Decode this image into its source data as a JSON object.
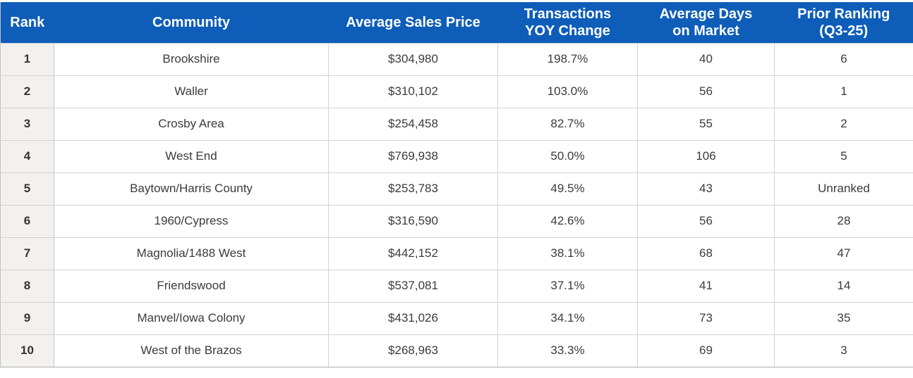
{
  "colors": {
    "header_bg": "#0e5db9",
    "header_text": "#ffffff",
    "rank_column_bg": "#f2f1ef",
    "row_bg": "#ffffff",
    "grid_border": "#d2d2d2",
    "outer_border": "#aeaeae",
    "body_text": "#3b3b3b"
  },
  "chart_data": {
    "type": "table",
    "columns": [
      {
        "key": "rank",
        "label": "Rank",
        "lines": [
          "Rank"
        ]
      },
      {
        "key": "community",
        "label": "Community",
        "lines": [
          "Community"
        ]
      },
      {
        "key": "avg_sales_price",
        "label": "Average Sales Price",
        "lines": [
          "Average Sales Price"
        ]
      },
      {
        "key": "yoy_change",
        "label": "Transactions YOY Change",
        "lines": [
          "Transactions",
          "YOY Change"
        ]
      },
      {
        "key": "avg_days_on_market",
        "label": "Average Days on Market",
        "lines": [
          "Average Days",
          "on Market"
        ]
      },
      {
        "key": "prior_ranking",
        "label": "Prior Ranking (Q3-25)",
        "lines": [
          "Prior Ranking",
          "(Q3-25)"
        ]
      }
    ],
    "rows": [
      {
        "rank": "1",
        "community": "Brookshire",
        "avg_sales_price": "$304,980",
        "yoy_change": "198.7%",
        "avg_days_on_market": "40",
        "prior_ranking": "6"
      },
      {
        "rank": "2",
        "community": "Waller",
        "avg_sales_price": "$310,102",
        "yoy_change": "103.0%",
        "avg_days_on_market": "56",
        "prior_ranking": "1"
      },
      {
        "rank": "3",
        "community": "Crosby Area",
        "avg_sales_price": "$254,458",
        "yoy_change": "82.7%",
        "avg_days_on_market": "55",
        "prior_ranking": "2"
      },
      {
        "rank": "4",
        "community": "West End",
        "avg_sales_price": "$769,938",
        "yoy_change": "50.0%",
        "avg_days_on_market": "106",
        "prior_ranking": "5"
      },
      {
        "rank": "5",
        "community": "Baytown/Harris County",
        "avg_sales_price": "$253,783",
        "yoy_change": "49.5%",
        "avg_days_on_market": "43",
        "prior_ranking": "Unranked"
      },
      {
        "rank": "6",
        "community": "1960/Cypress",
        "avg_sales_price": "$316,590",
        "yoy_change": "42.6%",
        "avg_days_on_market": "56",
        "prior_ranking": "28"
      },
      {
        "rank": "7",
        "community": "Magnolia/1488 West",
        "avg_sales_price": "$442,152",
        "yoy_change": "38.1%",
        "avg_days_on_market": "68",
        "prior_ranking": "47"
      },
      {
        "rank": "8",
        "community": "Friendswood",
        "avg_sales_price": "$537,081",
        "yoy_change": "37.1%",
        "avg_days_on_market": "41",
        "prior_ranking": "14"
      },
      {
        "rank": "9",
        "community": "Manvel/Iowa Colony",
        "avg_sales_price": "$431,026",
        "yoy_change": "34.1%",
        "avg_days_on_market": "73",
        "prior_ranking": "35"
      },
      {
        "rank": "10",
        "community": "West of the Brazos",
        "avg_sales_price": "$268,963",
        "yoy_change": "33.3%",
        "avg_days_on_market": "69",
        "prior_ranking": "3"
      }
    ]
  }
}
